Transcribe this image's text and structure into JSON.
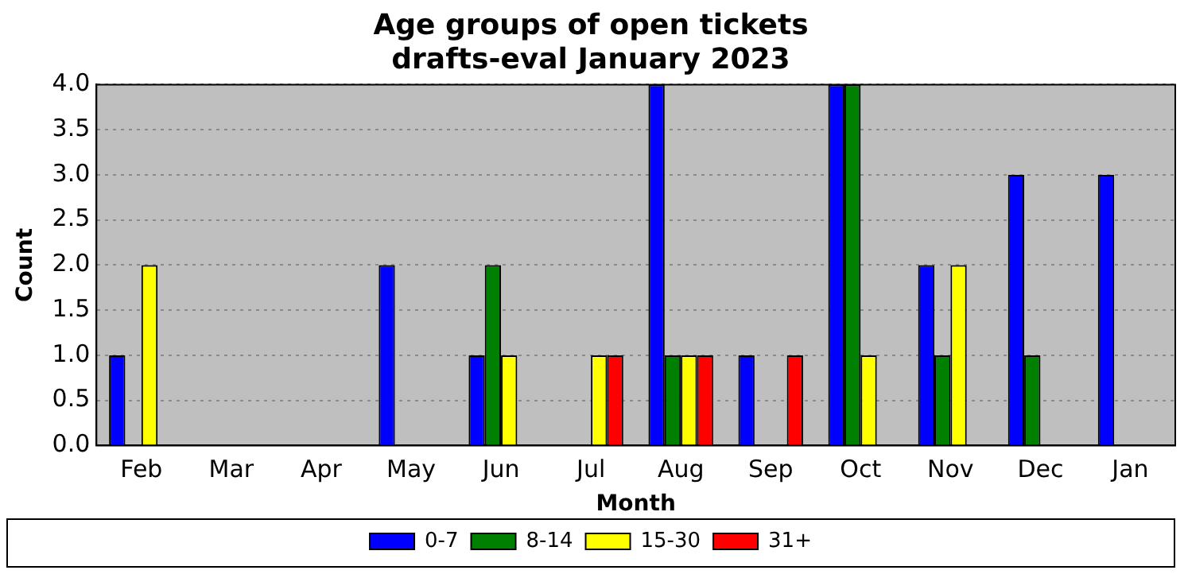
{
  "chart_data": {
    "type": "bar",
    "title": "Age groups of open tickets",
    "subtitle": "drafts-eval January 2023",
    "xlabel": "Month",
    "ylabel": "Count",
    "categories": [
      "Feb",
      "Mar",
      "Apr",
      "May",
      "Jun",
      "Jul",
      "Aug",
      "Sep",
      "Oct",
      "Nov",
      "Dec",
      "Jan"
    ],
    "series": [
      {
        "name": "0-7",
        "color": "#0000ff",
        "values": [
          1,
          0,
          0,
          2,
          1,
          0,
          4,
          1,
          4,
          2,
          3,
          3
        ]
      },
      {
        "name": "8-14",
        "color": "#008000",
        "values": [
          0,
          0,
          0,
          0,
          2,
          0,
          1,
          0,
          4,
          1,
          1,
          0
        ]
      },
      {
        "name": "15-30",
        "color": "#ffff00",
        "values": [
          2,
          0,
          0,
          0,
          1,
          1,
          1,
          0,
          1,
          2,
          0,
          0
        ]
      },
      {
        "name": "31+",
        "color": "#ff0000",
        "values": [
          0,
          0,
          0,
          0,
          0,
          1,
          1,
          1,
          0,
          0,
          0,
          0
        ]
      }
    ],
    "ylim": [
      0,
      4
    ],
    "yticks": [
      {
        "value": 0,
        "label": "0.0"
      },
      {
        "value": 0.5,
        "label": "0.5"
      },
      {
        "value": 1,
        "label": "1.0"
      },
      {
        "value": 1.5,
        "label": "1.5"
      },
      {
        "value": 2,
        "label": "2.0"
      },
      {
        "value": 2.5,
        "label": "2.5"
      },
      {
        "value": 3,
        "label": "3.0"
      },
      {
        "value": 3.5,
        "label": "3.5"
      },
      {
        "value": 4,
        "label": "4.0"
      }
    ],
    "grid": "y",
    "legend": "bottom"
  }
}
